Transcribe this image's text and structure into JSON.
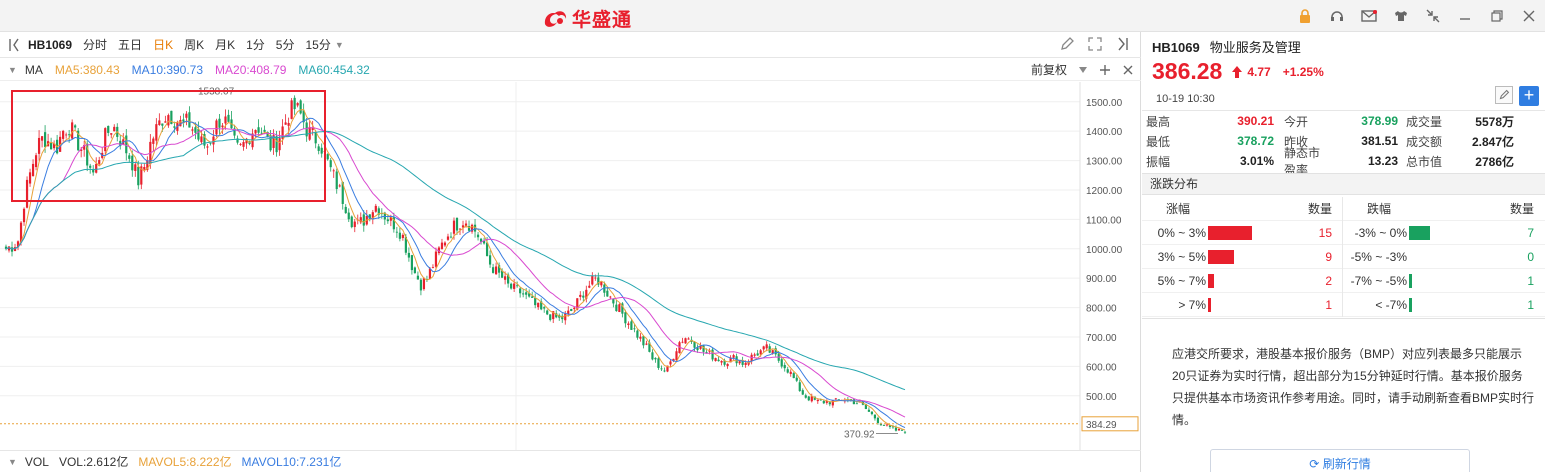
{
  "app": {
    "logo_text": "华盛通"
  },
  "window_controls": [
    "lock-icon",
    "headset-icon",
    "mail-icon",
    "shirt-icon",
    "shrink-icon",
    "minimize-icon",
    "restore-icon",
    "close-icon"
  ],
  "toolbar": {
    "symbol": "HB1069",
    "periods": [
      "分时",
      "五日",
      "日K",
      "周K",
      "月K",
      "1分",
      "5分",
      "15分"
    ],
    "active_period": "日K"
  },
  "ma": {
    "label": "MA",
    "items": [
      {
        "text": "MA5:380.43",
        "color": "#e8a23a"
      },
      {
        "text": "MA10:390.73",
        "color": "#3a7de0"
      },
      {
        "text": "MA20:408.79",
        "color": "#d94ad0"
      },
      {
        "text": "MA60:454.32",
        "color": "#27a7b0"
      }
    ],
    "adjust": "前复权"
  },
  "chart_data": {
    "type": "candlestick",
    "y_ticks": [
      "1500.00",
      "1400.00",
      "1300.00",
      "1200.00",
      "1100.00",
      "1000.00",
      "900.00",
      "800.00",
      "700.00",
      "600.00",
      "500.00"
    ],
    "ylim": [
      370,
      1540
    ],
    "last_price_label": "384.29",
    "high_label": "1538.07",
    "low_label": "370.92",
    "close_path": [
      1000,
      1010,
      1030,
      1180,
      1270,
      1350,
      1380,
      1360,
      1340,
      1400,
      1420,
      1380,
      1340,
      1300,
      1250,
      1330,
      1390,
      1420,
      1380,
      1340,
      1300,
      1230,
      1280,
      1360,
      1410,
      1450,
      1460,
      1440,
      1420,
      1430,
      1400,
      1360,
      1350,
      1400,
      1440,
      1430,
      1370,
      1330,
      1360,
      1400,
      1420,
      1390,
      1350,
      1360,
      1410,
      1460,
      1480,
      1450,
      1400,
      1380,
      1360,
      1300,
      1250,
      1200,
      1150,
      1100,
      1080,
      1100,
      1130,
      1150,
      1120,
      1100,
      1080,
      1050,
      980,
      920,
      880,
      900,
      950,
      1000,
      1040,
      1070,
      1090,
      1100,
      1080,
      1050,
      1000,
      950,
      920,
      900,
      870,
      860,
      850,
      830,
      810,
      790,
      780,
      770,
      760,
      770,
      790,
      820,
      860,
      880,
      900,
      870,
      840,
      810,
      780,
      750,
      720,
      690,
      660,
      620,
      600,
      580,
      630,
      680,
      700,
      690,
      670,
      650,
      640,
      630,
      620,
      620,
      630,
      610,
      620,
      640,
      650,
      660,
      640,
      620,
      600,
      570,
      530,
      500,
      490,
      480,
      480,
      480,
      480,
      490,
      485,
      480,
      470,
      450,
      430,
      410,
      395,
      385,
      380,
      384
    ]
  },
  "volume": {
    "title": "VOL",
    "items": [
      {
        "text": "VOL:2.612亿",
        "color": "#333333"
      },
      {
        "text": "MAVOL5:8.222亿",
        "color": "#e8a23a"
      },
      {
        "text": "MAVOL10:7.231亿",
        "color": "#3a7de0"
      }
    ]
  },
  "info": {
    "code": "HB1069",
    "name": "物业服务及管理",
    "price": "386.28",
    "change": "4.77",
    "change_pct": "+1.25%",
    "time": "10-19 10:30",
    "rows": [
      [
        {
          "l": "最高",
          "v": "390.21",
          "c": "red"
        },
        {
          "l": "今开",
          "v": "378.99",
          "c": "green"
        },
        {
          "l": "成交量",
          "v": "5578万",
          "c": "dark"
        }
      ],
      [
        {
          "l": "最低",
          "v": "378.72",
          "c": "green"
        },
        {
          "l": "昨收",
          "v": "381.51",
          "c": "dark"
        },
        {
          "l": "成交额",
          "v": "2.847亿",
          "c": "dark"
        }
      ],
      [
        {
          "l": "振幅",
          "v": "3.01%",
          "c": "dark"
        },
        {
          "l": "静态市盈率",
          "v": "13.23",
          "c": "dark"
        },
        {
          "l": "总市值",
          "v": "2786亿",
          "c": "dark"
        }
      ]
    ]
  },
  "distribution": {
    "title": "涨跌分布",
    "head": {
      "rise": "涨幅",
      "count": "数量",
      "fall": "跌幅"
    },
    "rise": [
      {
        "range": "0% ~ 3%",
        "count": "15",
        "bar": 15
      },
      {
        "range": "3% ~ 5%",
        "count": "9",
        "bar": 9
      },
      {
        "range": "5% ~ 7%",
        "count": "2",
        "bar": 2
      },
      {
        "range": "> 7%",
        "count": "1",
        "bar": 1
      }
    ],
    "fall": [
      {
        "range": "-3% ~  0%",
        "count": "7",
        "bar": 7
      },
      {
        "range": "-5% ~ -3%",
        "count": "0",
        "bar": 0
      },
      {
        "range": "-7% ~ -5%",
        "count": "1",
        "bar": 1
      },
      {
        "range": "< -7%",
        "count": "1",
        "bar": 1
      }
    ],
    "rise_color": "#e8202d",
    "fall_color": "#19a15f"
  },
  "notice": {
    "text": "应港交所要求，港股基本报价服务（BMP）对应列表最多只能展示20只证券为实时行情，超出部分为15分钟延时行情。基本报价服务只提供基本市场资讯作参考用途。同时，请手动刷新查看BMP实时行情。",
    "refresh": "刷新行情"
  }
}
